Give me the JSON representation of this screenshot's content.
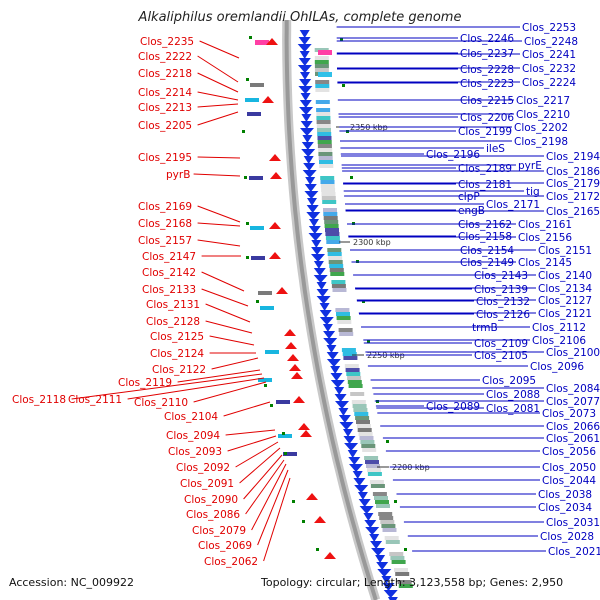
{
  "title": "Alkaliphilus oremlandii OhILAs, complete genome",
  "footer": {
    "accession": "Accession: NC_009922",
    "topology": "Topology: circular; Length: 3,123,558 bp; Genes: 2,950"
  },
  "colors": {
    "left_labels": "#e00000",
    "right_labels": "#0000c0",
    "backbone": "#999999",
    "gene_arrows": "#1030e0",
    "tick_marks": "#008000"
  },
  "scale_labels": [
    "2350 kbp",
    "2300 kbp",
    "2250 kbp",
    "2200 kbp"
  ],
  "left_genes": [
    "Clos_2235",
    "Clos_2222",
    "Clos_2218",
    "Clos_2214",
    "Clos_2213",
    "Clos_2205",
    "Clos_2195",
    "pyrB",
    "Clos_2169",
    "Clos_2168",
    "Clos_2157",
    "Clos_2147",
    "Clos_2142",
    "Clos_2133",
    "Clos_2131",
    "Clos_2128",
    "Clos_2125",
    "Clos_2124",
    "Clos_2122",
    "Clos_2119",
    "Clos_2118",
    "Clos_2111",
    "Clos_2110",
    "Clos_2104",
    "Clos_2094",
    "Clos_2093",
    "Clos_2092",
    "Clos_2091",
    "Clos_2090",
    "Clos_2086",
    "Clos_2079",
    "Clos_2069",
    "Clos_2062"
  ],
  "right_genes": [
    "Clos_2253",
    "Clos_2246",
    "Clos_2248",
    "Clos_2237",
    "Clos_2241",
    "Clos_2228",
    "Clos_2232",
    "Clos_2223",
    "Clos_2224",
    "Clos_2215",
    "Clos_2217",
    "Clos_2206",
    "Clos_2210",
    "Clos_2199",
    "Clos_2202",
    "Clos_2198",
    "ileS",
    "Clos_2196",
    "Clos_2194",
    "Clos_2189",
    "pyrE",
    "Clos_2186",
    "Clos_2181",
    "Clos_2179",
    "tig",
    "clpP",
    "Clos_2172",
    "Clos_2171",
    "engB",
    "Clos_2165",
    "Clos_2162",
    "Clos_2161",
    "Clos_2158",
    "Clos_2156",
    "Clos_2154",
    "Clos_2151",
    "Clos_2149",
    "Clos_2145",
    "Clos_2143",
    "Clos_2140",
    "Clos_2139",
    "Clos_2134",
    "Clos_2132",
    "Clos_2127",
    "Clos_2126",
    "Clos_2121",
    "trmB",
    "Clos_2112",
    "Clos_2109",
    "Clos_2106",
    "Clos_2105",
    "Clos_2100",
    "Clos_2096",
    "Clos_2095",
    "Clos_2084",
    "Clos_2088",
    "Clos_2077",
    "Clos_2089",
    "Clos_2081",
    "Clos_2073",
    "Clos_2066",
    "Clos_2061",
    "Clos_2056",
    "Clos_2050",
    "Clos_2044",
    "Clos_2038",
    "Clos_2034",
    "Clos_2031",
    "Clos_2028",
    "Clos_2021"
  ]
}
